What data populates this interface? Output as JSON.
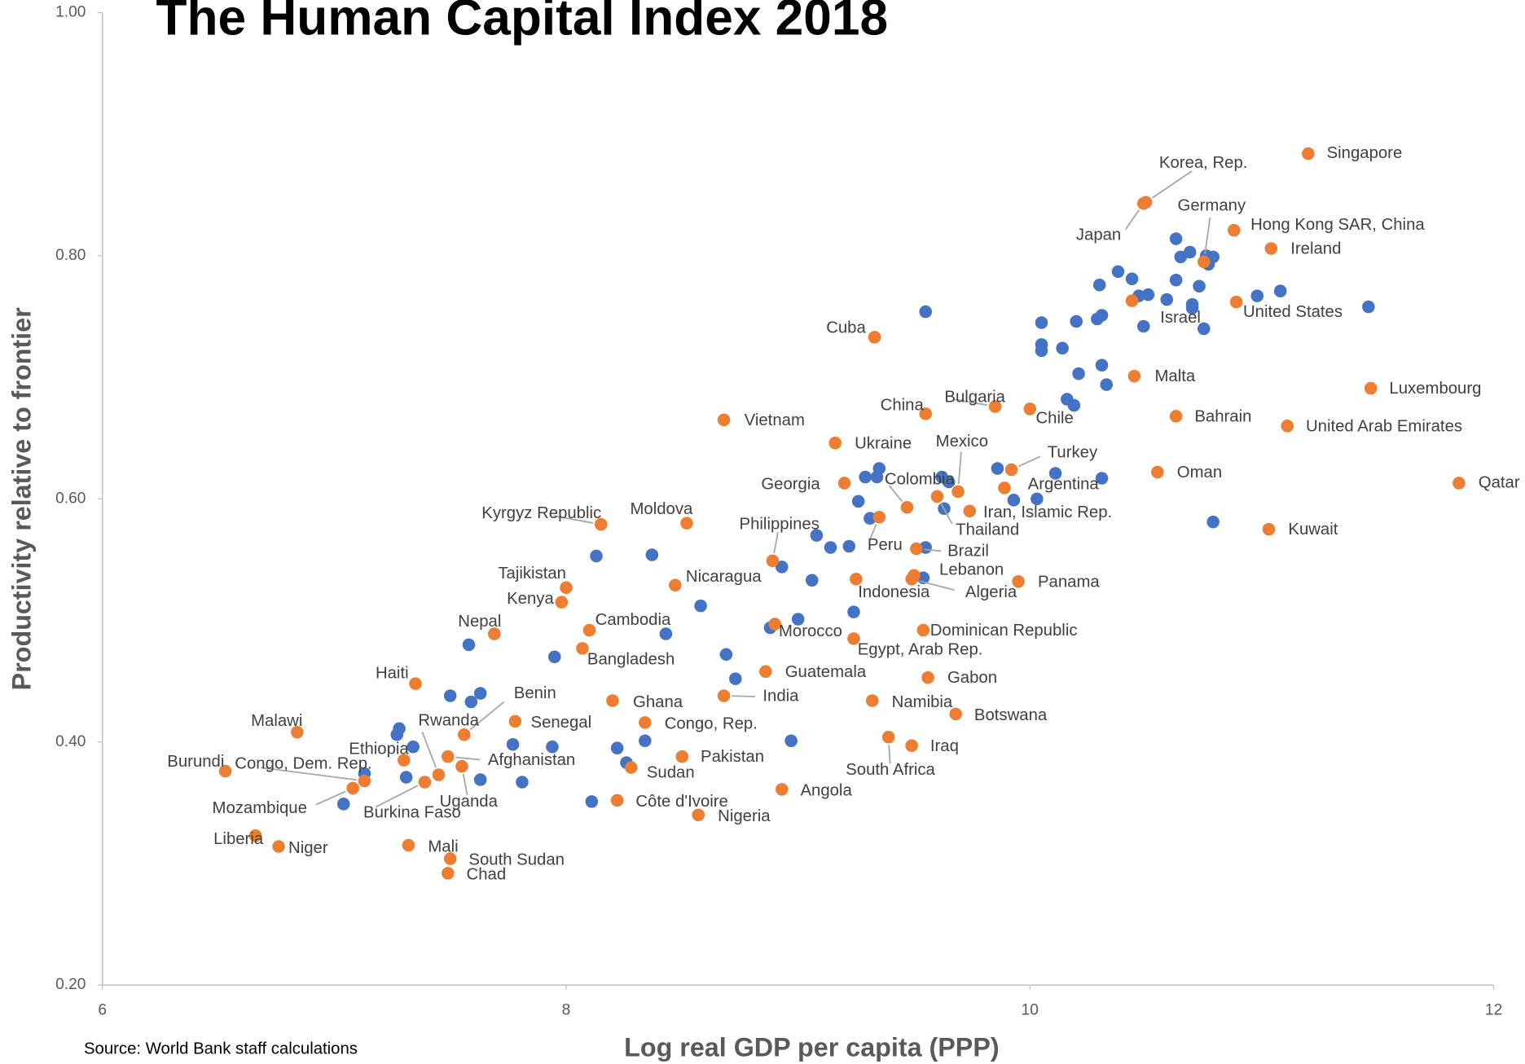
{
  "chart_data": {
    "type": "scatter",
    "title": "The Human Capital Index 2018",
    "x_label": "Log real GDP per capita (PPP)",
    "y_label": "Productivity relative to frontier",
    "source": "Source: World Bank staff calculations",
    "xlim": [
      6,
      12
    ],
    "xticks": [
      6,
      8,
      10,
      12
    ],
    "ylim": [
      0.2,
      1.0
    ],
    "yticks": [
      {
        "value": 0.2,
        "label": "0.20"
      },
      {
        "value": 0.4,
        "label": "0.40"
      },
      {
        "value": 0.6,
        "label": "0.60"
      },
      {
        "value": 0.8,
        "label": "0.80"
      },
      {
        "value": 1.0,
        "label": "1.00"
      }
    ],
    "grid": false,
    "series": [
      {
        "color": "#ed7d31",
        "labels": [
          "Singapore",
          "Korea, Rep.",
          "Japan",
          "Germany",
          "Hong Kong SAR, China",
          "Ireland",
          "Israel",
          "United States",
          "Cuba",
          "Malta",
          "Luxembourg",
          "Bulgaria",
          "Chile",
          "China",
          "Vietnam",
          "Bahrain",
          "United Arab Emirates",
          "Ukraine",
          "Turkey",
          "Mexico",
          "Oman",
          "Qatar",
          "Georgia",
          "Argentina",
          "Colombia",
          "Thailand",
          "Iran, Islamic Rep.",
          "Peru",
          "Kyrgyz Republic",
          "Moldova",
          "Kuwait",
          "Brazil",
          "Philippines",
          "Lebanon",
          "Indonesia",
          "Algeria",
          "Panama",
          "Tajikistan",
          "Nicaragua",
          "Kenya",
          "Cambodia",
          "Nepal",
          "Morocco",
          "Dominican Republic",
          "Egypt, Arab Rep.",
          "Bangladesh",
          "Haiti",
          "Guatemala",
          "Gabon",
          "India",
          "Ghana",
          "Namibia",
          "Benin",
          "Botswana",
          "Senegal",
          "Congo, Rep.",
          "Malawi",
          "South Africa",
          "Iraq",
          "Rwanda",
          "Afghanistan",
          "Pakistan",
          "Ethiopia",
          "Uganda",
          "Sudan",
          "Burundi",
          "Congo, Dem. Rep.",
          "Burkina Faso",
          "Mozambique",
          "Angola",
          "Côte d'Ivoire",
          "Nigeria",
          "Liberia",
          "Niger",
          "Mali",
          "South Sudan",
          "Chad"
        ],
        "x": [
          11.2,
          10.5,
          10.49,
          10.75,
          10.88,
          11.04,
          10.44,
          10.89,
          9.33,
          10.45,
          11.47,
          9.85,
          10.0,
          9.55,
          8.68,
          10.63,
          11.11,
          9.16,
          9.92,
          9.69,
          10.55,
          11.85,
          9.2,
          9.89,
          9.47,
          9.6,
          9.74,
          9.35,
          8.15,
          8.52,
          11.03,
          9.51,
          8.89,
          9.5,
          9.25,
          9.49,
          9.95,
          8.0,
          8.47,
          7.98,
          8.1,
          7.69,
          8.9,
          9.54,
          9.24,
          8.07,
          7.35,
          8.86,
          9.56,
          8.68,
          8.2,
          9.32,
          7.56,
          9.68,
          7.78,
          8.34,
          6.84,
          9.39,
          9.49,
          7.45,
          7.49,
          8.5,
          7.3,
          7.55,
          8.28,
          6.53,
          7.13,
          7.39,
          7.08,
          8.93,
          8.22,
          8.57,
          6.66,
          6.76,
          7.32,
          7.5,
          7.49
        ],
        "values": [
          0.884,
          0.844,
          0.843,
          0.795,
          0.821,
          0.806,
          0.763,
          0.762,
          0.733,
          0.701,
          0.691,
          0.676,
          0.674,
          0.67,
          0.665,
          0.668,
          0.66,
          0.646,
          0.624,
          0.606,
          0.622,
          0.613,
          0.613,
          0.609,
          0.593,
          0.602,
          0.59,
          0.585,
          0.579,
          0.58,
          0.575,
          0.559,
          0.549,
          0.537,
          0.534,
          0.534,
          0.532,
          0.527,
          0.529,
          0.515,
          0.492,
          0.489,
          0.497,
          0.492,
          0.485,
          0.477,
          0.448,
          0.458,
          0.453,
          0.438,
          0.434,
          0.434,
          0.406,
          0.423,
          0.417,
          0.416,
          0.408,
          0.404,
          0.397,
          0.373,
          0.388,
          0.388,
          0.385,
          0.38,
          0.379,
          0.376,
          0.368,
          0.367,
          0.362,
          0.361,
          0.352,
          0.34,
          0.323,
          0.314,
          0.315,
          0.304,
          0.292
        ]
      },
      {
        "color": "#4472c4",
        "x": [
          9.55,
          10.63,
          10.69,
          10.65,
          10.76,
          10.79,
          10.77,
          10.38,
          10.3,
          10.44,
          10.73,
          10.63,
          10.51,
          10.47,
          10.59,
          10.7,
          10.7,
          10.98,
          11.08,
          11.46,
          10.05,
          10.2,
          10.29,
          10.31,
          10.49,
          10.75,
          10.05,
          10.05,
          10.14,
          10.31,
          10.21,
          10.33,
          10.16,
          10.19,
          9.35,
          9.86,
          10.11,
          9.29,
          9.34,
          9.62,
          9.65,
          10.31,
          9.26,
          9.93,
          10.03,
          9.63,
          9.08,
          9.31,
          9.14,
          9.22,
          9.55,
          10.79,
          8.13,
          8.37,
          8.93,
          9.06,
          9.54,
          8.58,
          9.24,
          9.0,
          8.88,
          8.43,
          7.95,
          8.69,
          8.73,
          7.58,
          7.5,
          7.59,
          7.63,
          7.28,
          7.27,
          7.34,
          7.77,
          7.94,
          8.22,
          8.34,
          8.97,
          7.13,
          7.31,
          7.63,
          7.81,
          8.26,
          7.04,
          8.11
        ],
        "values": [
          0.754,
          0.814,
          0.803,
          0.799,
          0.8,
          0.799,
          0.793,
          0.787,
          0.776,
          0.781,
          0.775,
          0.78,
          0.768,
          0.767,
          0.764,
          0.76,
          0.757,
          0.767,
          0.771,
          0.758,
          0.745,
          0.746,
          0.748,
          0.751,
          0.742,
          0.74,
          0.727,
          0.722,
          0.724,
          0.71,
          0.703,
          0.694,
          0.682,
          0.677,
          0.625,
          0.625,
          0.621,
          0.618,
          0.618,
          0.618,
          0.614,
          0.617,
          0.598,
          0.599,
          0.6,
          0.592,
          0.57,
          0.584,
          0.56,
          0.561,
          0.56,
          0.581,
          0.553,
          0.554,
          0.544,
          0.533,
          0.535,
          0.512,
          0.507,
          0.501,
          0.494,
          0.489,
          0.47,
          0.472,
          0.452,
          0.48,
          0.438,
          0.433,
          0.44,
          0.411,
          0.406,
          0.396,
          0.398,
          0.396,
          0.395,
          0.401,
          0.401,
          0.374,
          0.371,
          0.369,
          0.367,
          0.383,
          0.349,
          0.351
        ]
      }
    ]
  }
}
